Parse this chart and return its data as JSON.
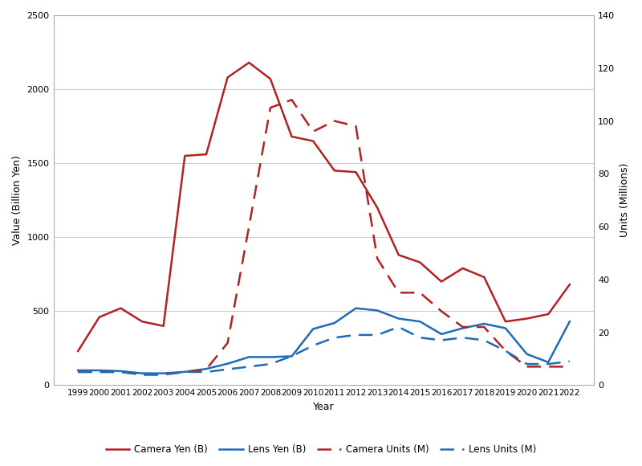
{
  "years": [
    1999,
    2000,
    2001,
    2002,
    2003,
    2004,
    2005,
    2006,
    2007,
    2008,
    2009,
    2010,
    2011,
    2012,
    2013,
    2014,
    2015,
    2016,
    2017,
    2018,
    2019,
    2020,
    2021,
    2022
  ],
  "camera_yen": [
    230,
    460,
    520,
    430,
    400,
    1550,
    1560,
    2080,
    2180,
    2070,
    1680,
    1650,
    1450,
    1440,
    1200,
    880,
    830,
    700,
    790,
    730,
    430,
    450,
    480,
    680
  ],
  "lens_yen": [
    100,
    100,
    95,
    80,
    80,
    90,
    110,
    145,
    190,
    190,
    195,
    380,
    420,
    520,
    505,
    450,
    430,
    345,
    385,
    415,
    385,
    210,
    155,
    430
  ],
  "camera_units": [
    5,
    5,
    5,
    4,
    4,
    5,
    6,
    16,
    60,
    105,
    108,
    96,
    100,
    98,
    48,
    35,
    35,
    28,
    22,
    22,
    13,
    7,
    7,
    7
  ],
  "lens_units": [
    5,
    5,
    5,
    4,
    4,
    5,
    5,
    6,
    7,
    8,
    11,
    15,
    18,
    19,
    19,
    22,
    18,
    17,
    18,
    17,
    13,
    8,
    8,
    9
  ],
  "camera_yen_color": "#b22222",
  "lens_yen_color": "#1e6bb8",
  "camera_units_color": "#b22222",
  "lens_units_color": "#1e6bb8",
  "ylabel_left": "Value (Billion Yen)",
  "ylabel_right": "Units (Millions)",
  "xlabel": "Year",
  "ylim_left": [
    0,
    2500
  ],
  "ylim_right": [
    0,
    140
  ],
  "yticks_left": [
    0,
    500,
    1000,
    1500,
    2000,
    2500
  ],
  "yticks_right": [
    0,
    20,
    40,
    60,
    80,
    100,
    120,
    140
  ],
  "legend_labels": [
    "Camera Yen (B)",
    "Lens Yen (B)",
    "Camera Units (M)",
    "Lens Units (M)"
  ],
  "background_color": "#ffffff",
  "grid_color": "#cccccc",
  "border_color": "#aaaaaa"
}
